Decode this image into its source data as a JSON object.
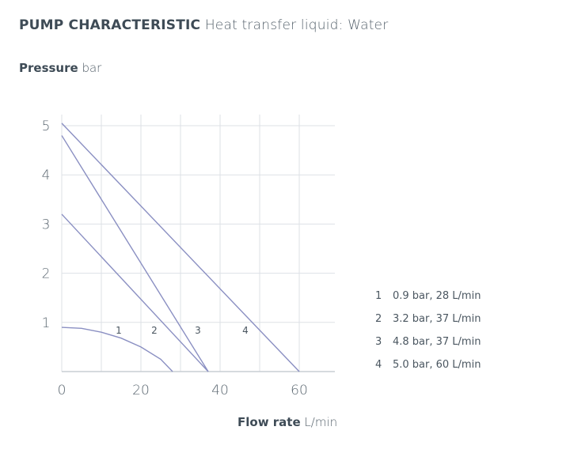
{
  "title": {
    "bold": "PUMP CHARACTERISTIC",
    "sub": "Heat transfer liquid: Water"
  },
  "chart_data": {
    "type": "line",
    "xlabel": {
      "bold": "Flow rate",
      "unit": "L/min"
    },
    "ylabel": {
      "bold": "Pressure",
      "unit": "bar"
    },
    "xlim": [
      0,
      69
    ],
    "ylim": [
      0,
      5.5
    ],
    "xticks": [
      0,
      20,
      40,
      60
    ],
    "yticks": [
      1,
      2,
      3,
      4,
      5
    ],
    "grid": true,
    "line_color": "#8a8fc2",
    "series": [
      {
        "name": "1",
        "x": [
          0,
          5,
          10,
          15,
          20,
          25,
          28
        ],
        "y": [
          0.9,
          0.88,
          0.8,
          0.68,
          0.5,
          0.25,
          0
        ],
        "label_at": [
          14,
          0.85
        ]
      },
      {
        "name": "2",
        "x": [
          0,
          37
        ],
        "y": [
          3.2,
          0
        ],
        "label_at": [
          23,
          0.85
        ]
      },
      {
        "name": "3",
        "x": [
          0,
          37
        ],
        "y": [
          4.8,
          0
        ],
        "label_at": [
          34,
          0.85
        ]
      },
      {
        "name": "4",
        "x": [
          0,
          60
        ],
        "y": [
          5.05,
          0
        ],
        "label_at": [
          46,
          0.85
        ]
      }
    ]
  },
  "legend": [
    {
      "num": "1",
      "text": "0.9 bar, 28 L/min"
    },
    {
      "num": "2",
      "text": "3.2 bar, 37 L/min"
    },
    {
      "num": "3",
      "text": "4.8 bar, 37 L/min"
    },
    {
      "num": "4",
      "text": "5.0 bar, 60 L/min"
    }
  ]
}
